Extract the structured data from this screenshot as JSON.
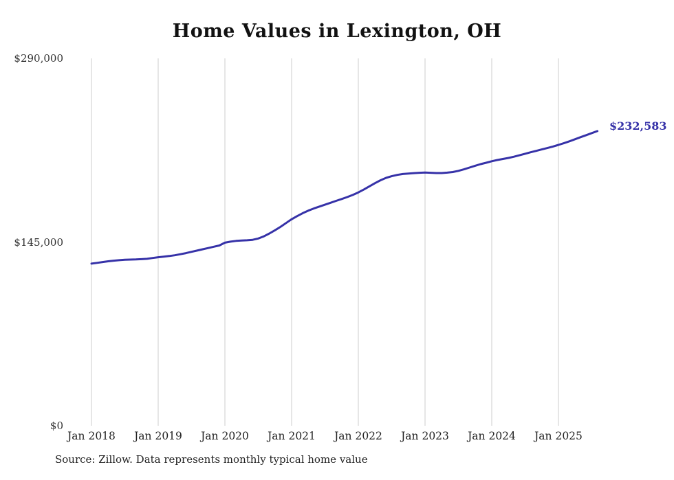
{
  "title": "Home Values in Lexington, OH",
  "source": "Source: Zillow. Data represents monthly typical home value",
  "end_label": "$232,583",
  "colors": {
    "line": "#3632a8",
    "grid": "#cccccc",
    "title_text": "#111111",
    "axis_text": "#333333"
  },
  "chart_data": {
    "type": "line",
    "title": "Home Values in Lexington, OH",
    "xlabel": "",
    "ylabel": "",
    "ylim": [
      0,
      290000
    ],
    "grid": "vertical-only",
    "legend": "none",
    "x_unit": "month",
    "x_start": "2018-01",
    "x_end": "2025-08",
    "y_ticks": [
      {
        "value": 0,
        "label": "$0"
      },
      {
        "value": 145000,
        "label": "$145,000"
      },
      {
        "value": 290000,
        "label": "$290,000"
      }
    ],
    "x_ticks": [
      "Jan 2018",
      "Jan 2019",
      "Jan 2020",
      "Jan 2021",
      "Jan 2022",
      "Jan 2023",
      "Jan 2024",
      "Jan 2025"
    ],
    "final_value": 232583,
    "series": [
      {
        "name": "Typical home value",
        "values": [
          128000,
          128600,
          129200,
          129800,
          130300,
          130700,
          131000,
          131200,
          131300,
          131500,
          131800,
          132400,
          133000,
          133500,
          134000,
          134600,
          135400,
          136300,
          137300,
          138300,
          139300,
          140300,
          141300,
          142300,
          144500,
          145300,
          145900,
          146200,
          146400,
          146800,
          147800,
          149500,
          151800,
          154300,
          157000,
          160000,
          163000,
          165500,
          167800,
          169800,
          171500,
          173000,
          174500,
          176000,
          177500,
          179000,
          180500,
          182200,
          184200,
          186500,
          189000,
          191500,
          193800,
          195700,
          197000,
          198000,
          198700,
          199100,
          199400,
          199700,
          199900,
          199700,
          199500,
          199500,
          199800,
          200300,
          201200,
          202400,
          203800,
          205200,
          206500,
          207600,
          208800,
          209800,
          210600,
          211400,
          212400,
          213500,
          214700,
          215900,
          217000,
          218100,
          219200,
          220400,
          221700,
          223100,
          224600,
          226200,
          227800,
          229400,
          231000,
          232583
        ]
      }
    ]
  }
}
